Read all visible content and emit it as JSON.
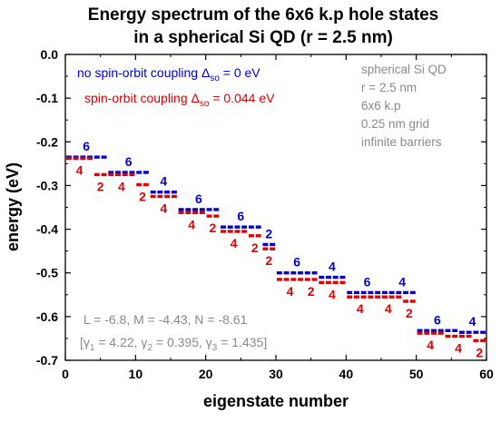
{
  "chart_data": {
    "type": "scatter",
    "title": [
      "Energy spectrum of the 6x6 k.p hole states",
      "in a spherical Si QD (r = 2.5 nm)"
    ],
    "xlabel": "eigenstate number",
    "ylabel": "energy (eV)",
    "xlim": [
      0,
      60
    ],
    "ylim": [
      -0.7,
      0.0
    ],
    "xticks": [
      "0",
      "10",
      "20",
      "30",
      "40",
      "50",
      "60"
    ],
    "yticks": [
      "0.0",
      "-0.1",
      "-0.2",
      "-0.3",
      "-0.4",
      "-0.5",
      "-0.6",
      "-0.7"
    ],
    "grid": false,
    "legend_position": "top-left",
    "colors": {
      "no_so": "#0000d0",
      "so": "#e00000",
      "info": "#8a8a8a"
    },
    "series": [
      {
        "name": "no spin-orbit coupling",
        "legend_text": "no spin-orbit coupling Δ",
        "legend_sub": "so",
        "legend_value": " = 0 eV",
        "color": "#0000d0",
        "levels": [
          {
            "start": 1,
            "count": 6,
            "energy": -0.235,
            "degeneracy": "6"
          },
          {
            "start": 7,
            "count": 6,
            "energy": -0.27,
            "degeneracy": "6"
          },
          {
            "start": 13,
            "count": 4,
            "energy": -0.315,
            "degeneracy": "4"
          },
          {
            "start": 17,
            "count": 6,
            "energy": -0.355,
            "degeneracy": "6"
          },
          {
            "start": 23,
            "count": 6,
            "energy": -0.395,
            "degeneracy": "6"
          },
          {
            "start": 29,
            "count": 2,
            "energy": -0.435,
            "degeneracy": "2"
          },
          {
            "start": 31,
            "count": 6,
            "energy": -0.5,
            "degeneracy": "6"
          },
          {
            "start": 37,
            "count": 4,
            "energy": -0.51,
            "degeneracy": "4"
          },
          {
            "start": 41,
            "count": 6,
            "energy": -0.545,
            "degeneracy": "6"
          },
          {
            "start": 47,
            "count": 4,
            "energy": -0.545,
            "degeneracy": "4"
          },
          {
            "start": 51,
            "count": 6,
            "energy": -0.632,
            "degeneracy": "6"
          },
          {
            "start": 57,
            "count": 4,
            "energy": -0.636,
            "degeneracy": "4"
          }
        ]
      },
      {
        "name": "spin-orbit coupling",
        "legend_text": "spin-orbit coupling Δ",
        "legend_sub": "so",
        "legend_value": " = 0.044 eV",
        "color": "#e00000",
        "levels": [
          {
            "start": 1,
            "count": 4,
            "energy": -0.238,
            "degeneracy": "4"
          },
          {
            "start": 5,
            "count": 2,
            "energy": -0.275,
            "degeneracy": "2"
          },
          {
            "start": 7,
            "count": 4,
            "energy": -0.275,
            "degeneracy": "4"
          },
          {
            "start": 11,
            "count": 2,
            "energy": -0.298,
            "degeneracy": "2"
          },
          {
            "start": 13,
            "count": 4,
            "energy": -0.325,
            "degeneracy": "4"
          },
          {
            "start": 17,
            "count": 4,
            "energy": -0.362,
            "degeneracy": "4"
          },
          {
            "start": 21,
            "count": 2,
            "energy": -0.37,
            "degeneracy": "2"
          },
          {
            "start": 23,
            "count": 4,
            "energy": -0.405,
            "degeneracy": "4"
          },
          {
            "start": 27,
            "count": 2,
            "energy": -0.415,
            "degeneracy": "2"
          },
          {
            "start": 29,
            "count": 2,
            "energy": -0.445,
            "degeneracy": "2"
          },
          {
            "start": 31,
            "count": 4,
            "energy": -0.515,
            "degeneracy": "4"
          },
          {
            "start": 35,
            "count": 2,
            "energy": -0.515,
            "degeneracy": "2"
          },
          {
            "start": 37,
            "count": 4,
            "energy": -0.522,
            "degeneracy": "4"
          },
          {
            "start": 41,
            "count": 4,
            "energy": -0.555,
            "degeneracy": "4"
          },
          {
            "start": 45,
            "count": 4,
            "energy": -0.555,
            "degeneracy": "4"
          },
          {
            "start": 49,
            "count": 2,
            "energy": -0.565,
            "degeneracy": "2"
          },
          {
            "start": 51,
            "count": 4,
            "energy": -0.638,
            "degeneracy": "4"
          },
          {
            "start": 55,
            "count": 4,
            "energy": -0.645,
            "degeneracy": "4"
          },
          {
            "start": 59,
            "count": 2,
            "energy": -0.655,
            "degeneracy": "2"
          }
        ]
      }
    ],
    "info_box": [
      "spherical Si QD",
      "r = 2.5 nm",
      "6x6 k.p",
      "0.25 nm grid",
      "infinite barriers"
    ],
    "params_line1": "L = -6.8,   M = -4.43,   N = -8.61",
    "params_line2": [
      {
        "t": "[γ",
        "sub": false
      },
      {
        "t": "1",
        "sub": true
      },
      {
        "t": " = 4.22, γ",
        "sub": false
      },
      {
        "t": "2",
        "sub": true
      },
      {
        "t": " = 0.395, γ",
        "sub": false
      },
      {
        "t": "3",
        "sub": true
      },
      {
        "t": " = 1.435]",
        "sub": false
      }
    ]
  }
}
